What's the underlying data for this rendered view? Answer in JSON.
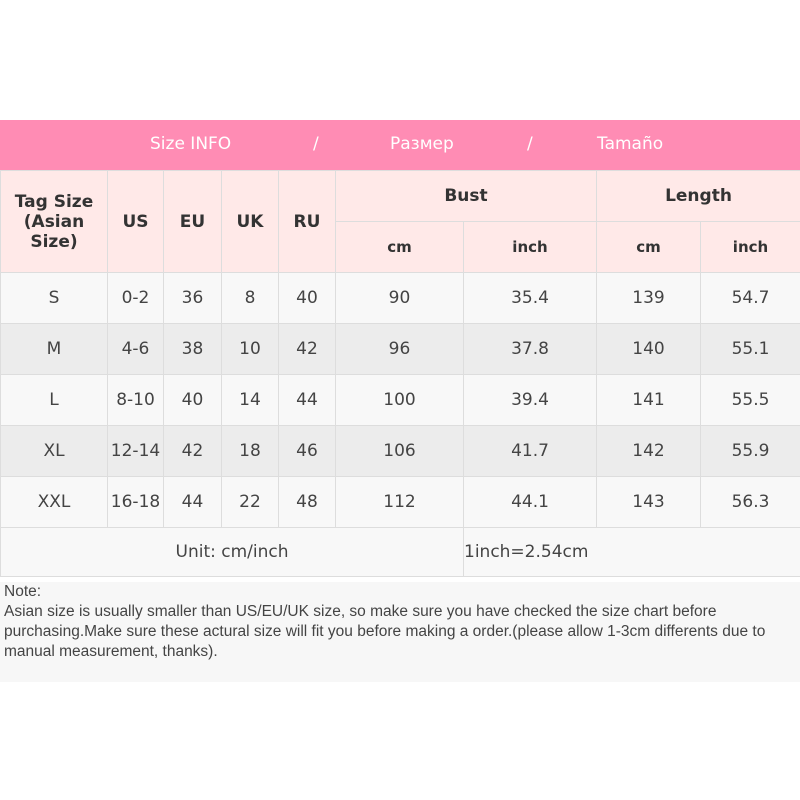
{
  "banner": {
    "en": "Size INFO",
    "sep": "/",
    "ru": "Размер",
    "es": "Tamaño"
  },
  "headers": {
    "tag": "Tag Size",
    "tag2": "(Asian Size)",
    "us": "US",
    "eu": "EU",
    "uk": "UK",
    "ru": "RU",
    "bust": "Bust",
    "length": "Length",
    "cm": "cm",
    "inch": "inch"
  },
  "rows": [
    {
      "tag": "S",
      "us": "0-2",
      "eu": "36",
      "uk": "8",
      "ru": "40",
      "bust_cm": "90",
      "bust_in": "35.4",
      "len_cm": "139",
      "len_in": "54.7"
    },
    {
      "tag": "M",
      "us": "4-6",
      "eu": "38",
      "uk": "10",
      "ru": "42",
      "bust_cm": "96",
      "bust_in": "37.8",
      "len_cm": "140",
      "len_in": "55.1"
    },
    {
      "tag": "L",
      "us": "8-10",
      "eu": "40",
      "uk": "14",
      "ru": "44",
      "bust_cm": "100",
      "bust_in": "39.4",
      "len_cm": "141",
      "len_in": "55.5"
    },
    {
      "tag": "XL",
      "us": "12-14",
      "eu": "42",
      "uk": "18",
      "ru": "46",
      "bust_cm": "106",
      "bust_in": "41.7",
      "len_cm": "142",
      "len_in": "55.9"
    },
    {
      "tag": "XXL",
      "us": "16-18",
      "eu": "44",
      "uk": "22",
      "ru": "48",
      "bust_cm": "112",
      "bust_in": "44.1",
      "len_cm": "143",
      "len_in": "56.3"
    }
  ],
  "unit": {
    "label": "Unit: cm/inch",
    "conversion": "1inch=2.54cm"
  },
  "note": {
    "title": "Note:",
    "body": "Asian size is usually smaller than US/EU/UK size, so make sure you have checked the size chart before purchasing.Make sure these actural size will fit you before making a order.(please allow 1-3cm differents due to manual measurement, thanks)."
  },
  "colors": {
    "banner": "#ff8cb4",
    "header_bg": "#ffe9e8"
  }
}
